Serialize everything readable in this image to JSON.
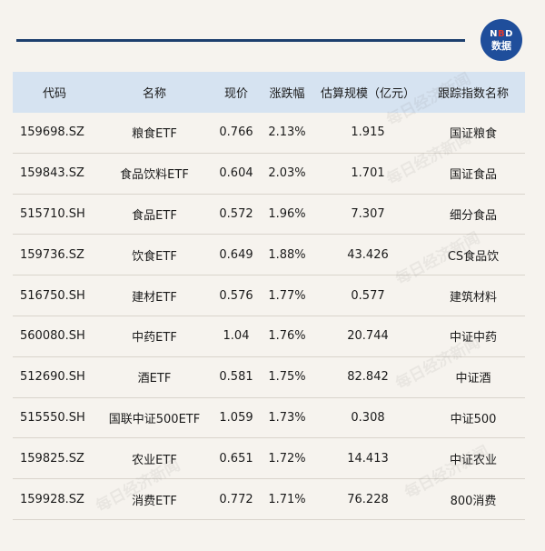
{
  "logo": {
    "line1_prefix": "N",
    "line1_accent": "B",
    "line1_suffix": "D",
    "line2": "数据"
  },
  "watermark_text": "每日经济新闻",
  "table": {
    "headers": [
      "代码",
      "名称",
      "现价",
      "涨跌幅",
      "估算规模（亿元）",
      "跟踪指数名称"
    ],
    "rows": [
      [
        "159698.SZ",
        "粮食ETF",
        "0.766",
        "2.13%",
        "1.915",
        "国证粮食"
      ],
      [
        "159843.SZ",
        "食品饮料ETF",
        "0.604",
        "2.03%",
        "1.701",
        "国证食品"
      ],
      [
        "515710.SH",
        "食品ETF",
        "0.572",
        "1.96%",
        "7.307",
        "细分食品"
      ],
      [
        "159736.SZ",
        "饮食ETF",
        "0.649",
        "1.88%",
        "43.426",
        "CS食品饮"
      ],
      [
        "516750.SH",
        "建材ETF",
        "0.576",
        "1.77%",
        "0.577",
        "建筑材料"
      ],
      [
        "560080.SH",
        "中药ETF",
        "1.04",
        "1.76%",
        "20.744",
        "中证中药"
      ],
      [
        "512690.SH",
        "酒ETF",
        "0.581",
        "1.75%",
        "82.842",
        "中证酒"
      ],
      [
        "515550.SH",
        "国联中证500ETF",
        "1.059",
        "1.73%",
        "0.308",
        "中证500"
      ],
      [
        "159825.SZ",
        "农业ETF",
        "0.651",
        "1.72%",
        "14.413",
        "中证农业"
      ],
      [
        "159928.SZ",
        "消费ETF",
        "0.772",
        "1.71%",
        "76.228",
        "800消费"
      ]
    ]
  }
}
